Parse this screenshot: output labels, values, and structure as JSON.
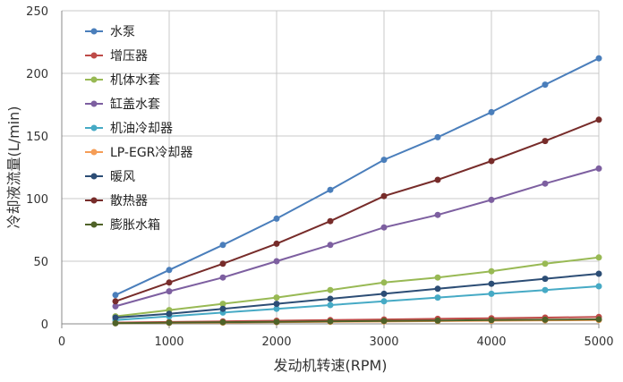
{
  "chart_data": {
    "type": "line",
    "xlabel": "发动机转速(RPM)",
    "ylabel": "冷却液流量(L/min)",
    "x": [
      500,
      1000,
      1500,
      2000,
      2500,
      3000,
      3500,
      4000,
      4500,
      5000
    ],
    "xlim": [
      0,
      5000
    ],
    "ylim": [
      0,
      250
    ],
    "xticks": [
      "0",
      "1000",
      "2000",
      "3000",
      "4000",
      "5000"
    ],
    "yticks": [
      "0",
      "50",
      "100",
      "150",
      "200",
      "250"
    ],
    "grid": true,
    "legend_position": "top-left",
    "series": [
      {
        "name": "水泵",
        "color": "#4a7ebb",
        "values": [
          23,
          43,
          63,
          84,
          107,
          131,
          149,
          169,
          191,
          212
        ]
      },
      {
        "name": "增压器",
        "color": "#be4b48",
        "values": [
          1,
          1.5,
          2,
          2.5,
          3,
          3.5,
          4,
          4.5,
          5,
          5.5
        ]
      },
      {
        "name": "机体水套",
        "color": "#98b954",
        "values": [
          6,
          11,
          16,
          21,
          27,
          33,
          37,
          42,
          48,
          53
        ]
      },
      {
        "name": "缸盖水套",
        "color": "#7d5fa0",
        "values": [
          14,
          26,
          37,
          50,
          63,
          77,
          87,
          99,
          112,
          124
        ]
      },
      {
        "name": "机油冷却器",
        "color": "#46aac5",
        "values": [
          3,
          6,
          9,
          12,
          15,
          18,
          21,
          24,
          27,
          30
        ]
      },
      {
        "name": "LP-EGR冷却器",
        "color": "#f59d56",
        "values": [
          0.5,
          0.8,
          1,
          1.3,
          1.6,
          1.9,
          2.2,
          2.5,
          2.8,
          3
        ]
      },
      {
        "name": "暖风",
        "color": "#2c4d75",
        "values": [
          5,
          8,
          12,
          16,
          20,
          24,
          28,
          32,
          36,
          40
        ]
      },
      {
        "name": "散热器",
        "color": "#772c2a",
        "values": [
          18,
          33,
          48,
          64,
          82,
          102,
          115,
          130,
          146,
          163
        ]
      },
      {
        "name": "膨胀水箱",
        "color": "#4f6228",
        "values": [
          0.5,
          1,
          1.3,
          1.6,
          2,
          2.3,
          2.6,
          3,
          3.3,
          3.6
        ]
      }
    ]
  }
}
